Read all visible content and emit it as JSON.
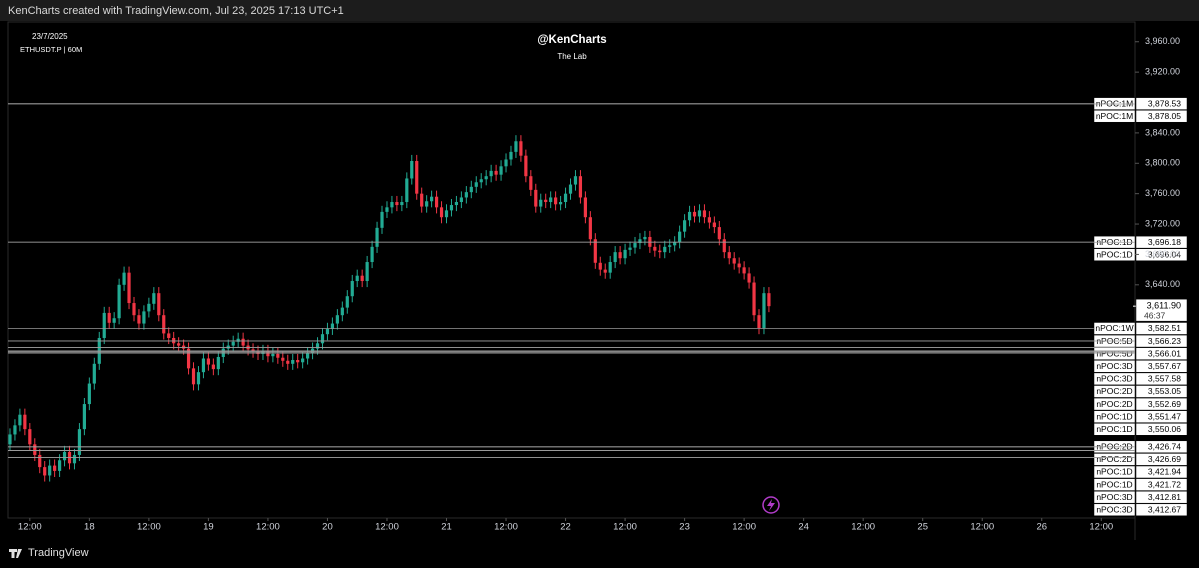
{
  "chart_data": {
    "type": "candlestick",
    "header": "KenCharts created with TradingView.com, Jul 23, 2025 17:13 UTC+1",
    "date": "23/7/2025",
    "symbol": "ETHUSDT.P | 60M",
    "title": "@KenCharts",
    "subtitle": "The Lab",
    "brand": "TradingView",
    "up_color": "#22ab94",
    "down_color": "#f23645",
    "xlim": [
      7.6,
      234.8
    ],
    "xticks": [
      {
        "value": 12,
        "label": "12:00"
      },
      {
        "value": 24,
        "label": "18"
      },
      {
        "value": 36,
        "label": "12:00"
      },
      {
        "value": 48,
        "label": "19"
      },
      {
        "value": 60,
        "label": "12:00"
      },
      {
        "value": 72,
        "label": "20"
      },
      {
        "value": 84,
        "label": "12:00"
      },
      {
        "value": 96,
        "label": "21"
      },
      {
        "value": 108,
        "label": "12:00"
      },
      {
        "value": 120,
        "label": "22"
      },
      {
        "value": 132,
        "label": "12:00"
      },
      {
        "value": 144,
        "label": "23"
      },
      {
        "value": 156,
        "label": "12:00"
      },
      {
        "value": 168,
        "label": "24"
      },
      {
        "value": 180,
        "label": "12:00"
      },
      {
        "value": 192,
        "label": "25"
      },
      {
        "value": 204,
        "label": "12:00"
      },
      {
        "value": 216,
        "label": "26"
      },
      {
        "value": 228,
        "label": "12:00"
      }
    ],
    "ylim": [
      3333,
      3986
    ],
    "yticks": [
      {
        "value": 3960,
        "label": "3,960.00"
      },
      {
        "value": 3920,
        "label": "3,920.00"
      },
      {
        "value": 3840,
        "label": "3,840.00"
      },
      {
        "value": 3800,
        "label": "3,800.00"
      },
      {
        "value": 3760,
        "label": "3,760.00"
      },
      {
        "value": 3720,
        "label": "3,720.00"
      },
      {
        "value": 3680,
        "label": "3,680.00"
      },
      {
        "value": 3640,
        "label": "3,640.00"
      }
    ],
    "x": [
      8,
      9,
      10,
      11,
      12,
      13,
      14,
      15,
      16,
      17,
      18,
      19,
      20,
      21,
      22,
      23,
      24,
      25,
      26,
      27,
      28,
      29,
      30,
      31,
      32,
      33,
      34,
      35,
      36,
      37,
      38,
      39,
      40,
      41,
      42,
      43,
      44,
      45,
      46,
      47,
      48,
      49,
      50,
      51,
      52,
      53,
      54,
      55,
      56,
      57,
      58,
      59,
      60,
      61,
      62,
      63,
      64,
      65,
      66,
      67,
      68,
      69,
      70,
      71,
      72,
      73,
      74,
      75,
      76,
      77,
      78,
      79,
      80,
      81,
      82,
      83,
      84,
      85,
      86,
      87,
      88,
      89,
      90,
      91,
      92,
      93,
      94,
      95,
      96,
      97,
      98,
      99,
      100,
      101,
      102,
      103,
      104,
      105,
      106,
      107,
      108,
      109,
      110,
      111,
      112,
      113,
      114,
      115,
      116,
      117,
      118,
      119,
      120,
      121,
      122,
      123,
      124,
      125,
      126,
      127,
      128,
      129,
      130,
      131,
      132,
      133,
      134,
      135,
      136,
      137,
      138,
      139,
      140,
      141,
      142,
      143,
      144,
      145,
      146,
      147,
      148,
      149,
      150,
      151,
      152,
      153,
      154,
      155,
      156,
      157,
      158,
      159,
      160,
      161
    ],
    "open": [
      3430,
      3443,
      3455,
      3469,
      3450,
      3430,
      3416,
      3400,
      3389,
      3402,
      3395,
      3409,
      3420,
      3405,
      3416,
      3450,
      3483,
      3510,
      3536,
      3570,
      3603,
      3590,
      3596,
      3640,
      3656,
      3616,
      3600,
      3589,
      3605,
      3615,
      3629,
      3600,
      3576,
      3570,
      3563,
      3560,
      3556,
      3530,
      3509,
      3525,
      3543,
      3535,
      3529,
      3545,
      3556,
      3560,
      3565,
      3569,
      3560,
      3555,
      3552,
      3549,
      3553,
      3546,
      3549,
      3544,
      3540,
      3536,
      3541,
      3538,
      3543,
      3550,
      3556,
      3563,
      3575,
      3582,
      3589,
      3600,
      3610,
      3625,
      3645,
      3652,
      3645,
      3670,
      3690,
      3715,
      3736,
      3742,
      3749,
      3745,
      3749,
      3780,
      3803,
      3760,
      3743,
      3750,
      3756,
      3742,
      3729,
      3738,
      3745,
      3749,
      3755,
      3762,
      3769,
      3775,
      3779,
      3783,
      3790,
      3785,
      3796,
      3805,
      3815,
      3829,
      3810,
      3783,
      3765,
      3743,
      3752,
      3749,
      3755,
      3746,
      3749,
      3760,
      3772,
      3783,
      3755,
      3729,
      3700,
      3669,
      3660,
      3656,
      3670,
      3683,
      3675,
      3686,
      3689,
      3695,
      3700,
      3703,
      3690,
      3685,
      3683,
      3690,
      3692,
      3696,
      3710,
      3725,
      3736,
      3730,
      3738,
      3729,
      3722,
      3716,
      3700,
      3683,
      3675,
      3668,
      3663,
      3655,
      3643,
      3600,
      3583,
      3629
    ],
    "high": [
      3451,
      3463,
      3477,
      3477,
      3458,
      3438,
      3424,
      3408,
      3410,
      3410,
      3417,
      3428,
      3428,
      3424,
      3458,
      3491,
      3518,
      3544,
      3578,
      3611,
      3611,
      3604,
      3648,
      3664,
      3664,
      3624,
      3608,
      3613,
      3623,
      3637,
      3637,
      3608,
      3584,
      3578,
      3571,
      3568,
      3564,
      3538,
      3533,
      3551,
      3551,
      3543,
      3553,
      3564,
      3568,
      3573,
      3577,
      3577,
      3568,
      3563,
      3560,
      3561,
      3561,
      3557,
      3557,
      3552,
      3548,
      3549,
      3549,
      3551,
      3558,
      3564,
      3571,
      3583,
      3590,
      3597,
      3608,
      3618,
      3633,
      3653,
      3660,
      3660,
      3678,
      3698,
      3723,
      3744,
      3750,
      3757,
      3757,
      3757,
      3788,
      3811,
      3811,
      3768,
      3758,
      3764,
      3764,
      3750,
      3746,
      3753,
      3757,
      3763,
      3770,
      3777,
      3783,
      3787,
      3791,
      3798,
      3798,
      3804,
      3813,
      3823,
      3837,
      3837,
      3818,
      3791,
      3773,
      3760,
      3760,
      3763,
      3763,
      3757,
      3768,
      3780,
      3791,
      3791,
      3763,
      3737,
      3708,
      3677,
      3668,
      3678,
      3691,
      3691,
      3694,
      3697,
      3703,
      3708,
      3711,
      3711,
      3698,
      3693,
      3698,
      3700,
      3704,
      3718,
      3733,
      3744,
      3744,
      3746,
      3746,
      3737,
      3730,
      3724,
      3708,
      3691,
      3683,
      3676,
      3671,
      3663,
      3651,
      3608,
      3637,
      3637
    ],
    "low": [
      3422,
      3435,
      3447,
      3442,
      3422,
      3408,
      3392,
      3381,
      3381,
      3387,
      3387,
      3401,
      3397,
      3397,
      3408,
      3442,
      3475,
      3502,
      3528,
      3562,
      3582,
      3582,
      3588,
      3632,
      3608,
      3592,
      3581,
      3581,
      3597,
      3607,
      3592,
      3568,
      3562,
      3555,
      3552,
      3548,
      3522,
      3501,
      3501,
      3517,
      3527,
      3521,
      3521,
      3537,
      3548,
      3552,
      3557,
      3552,
      3547,
      3544,
      3541,
      3541,
      3538,
      3538,
      3536,
      3532,
      3528,
      3528,
      3530,
      3530,
      3535,
      3542,
      3548,
      3555,
      3567,
      3574,
      3581,
      3592,
      3602,
      3617,
      3637,
      3637,
      3637,
      3662,
      3682,
      3707,
      3728,
      3734,
      3737,
      3737,
      3741,
      3772,
      3752,
      3735,
      3735,
      3742,
      3734,
      3721,
      3721,
      3730,
      3737,
      3741,
      3747,
      3754,
      3761,
      3767,
      3771,
      3775,
      3777,
      3777,
      3788,
      3797,
      3807,
      3802,
      3775,
      3757,
      3735,
      3735,
      3741,
      3741,
      3738,
      3738,
      3741,
      3752,
      3764,
      3747,
      3721,
      3692,
      3661,
      3652,
      3648,
      3648,
      3662,
      3667,
      3667,
      3678,
      3681,
      3687,
      3692,
      3682,
      3677,
      3675,
      3675,
      3682,
      3684,
      3688,
      3702,
      3717,
      3722,
      3722,
      3721,
      3714,
      3708,
      3692,
      3675,
      3667,
      3660,
      3655,
      3647,
      3635,
      3592,
      3575,
      3575,
      3604
    ],
    "close": [
      3443,
      3455,
      3469,
      3450,
      3430,
      3416,
      3400,
      3389,
      3402,
      3395,
      3409,
      3420,
      3405,
      3416,
      3450,
      3483,
      3510,
      3536,
      3570,
      3603,
      3590,
      3596,
      3640,
      3656,
      3616,
      3600,
      3589,
      3605,
      3615,
      3629,
      3600,
      3576,
      3570,
      3563,
      3560,
      3556,
      3530,
      3509,
      3525,
      3543,
      3535,
      3529,
      3545,
      3556,
      3560,
      3565,
      3569,
      3560,
      3555,
      3552,
      3549,
      3553,
      3546,
      3549,
      3544,
      3540,
      3536,
      3541,
      3538,
      3543,
      3550,
      3556,
      3563,
      3575,
      3582,
      3589,
      3600,
      3610,
      3625,
      3645,
      3652,
      3645,
      3670,
      3690,
      3715,
      3736,
      3742,
      3749,
      3745,
      3749,
      3780,
      3803,
      3760,
      3743,
      3750,
      3756,
      3742,
      3729,
      3738,
      3745,
      3749,
      3755,
      3762,
      3769,
      3775,
      3779,
      3783,
      3790,
      3785,
      3796,
      3805,
      3815,
      3829,
      3810,
      3783,
      3765,
      3743,
      3752,
      3749,
      3755,
      3746,
      3749,
      3760,
      3772,
      3783,
      3755,
      3729,
      3700,
      3669,
      3660,
      3656,
      3670,
      3683,
      3675,
      3686,
      3689,
      3695,
      3700,
      3703,
      3690,
      3685,
      3683,
      3690,
      3692,
      3696,
      3710,
      3725,
      3736,
      3730,
      3738,
      3729,
      3722,
      3716,
      3700,
      3683,
      3675,
      3668,
      3663,
      3655,
      3643,
      3600,
      3583,
      3629,
      3611.9
    ],
    "last_price": 3611.9,
    "last_price_label": "3,611.90",
    "countdown": "46:37",
    "levels": [
      {
        "name": "nPOC:1M",
        "value": 3878.53,
        "label": "3,878.53"
      },
      {
        "name": "nPOC:1M",
        "value": 3878.05,
        "label": "3,878.05"
      },
      {
        "name": "nPOC:1D",
        "value": 3696.18,
        "label": "3,696.18"
      },
      {
        "name": "nPOC:1D",
        "value": 3696.04,
        "label": "3,696.04"
      },
      {
        "name": "nPOC:1W",
        "value": 3582.51,
        "label": "3,582.51"
      },
      {
        "name": "nPOC:5D",
        "value": 3566.23,
        "label": "3,566.23"
      },
      {
        "name": "nPOC:5D",
        "value": 3566.01,
        "label": "3,566.01"
      },
      {
        "name": "nPOC:3D",
        "value": 3557.67,
        "label": "3,557.67"
      },
      {
        "name": "nPOC:3D",
        "value": 3557.58,
        "label": "3,557.58"
      },
      {
        "name": "nPOC:2D",
        "value": 3553.05,
        "label": "3,553.05"
      },
      {
        "name": "nPOC:2D",
        "value": 3552.69,
        "label": "3,552.69"
      },
      {
        "name": "nPOC:1D",
        "value": 3551.47,
        "label": "3,551.47"
      },
      {
        "name": "nPOC:1D",
        "value": 3550.06,
        "label": "3,550.06"
      },
      {
        "name": "nPOC:2D",
        "value": 3426.74,
        "label": "3,426.74"
      },
      {
        "name": "nPOC:2D",
        "value": 3426.69,
        "label": "3,426.69"
      },
      {
        "name": "nPOC:1D",
        "value": 3421.94,
        "label": "3,421.94"
      },
      {
        "name": "nPOC:1D",
        "value": 3421.72,
        "label": "3,421.72"
      },
      {
        "name": "nPOC:3D",
        "value": 3412.81,
        "label": "3,412.81"
      },
      {
        "name": "nPOC:3D",
        "value": 3412.67,
        "label": "3,412.67"
      }
    ]
  }
}
